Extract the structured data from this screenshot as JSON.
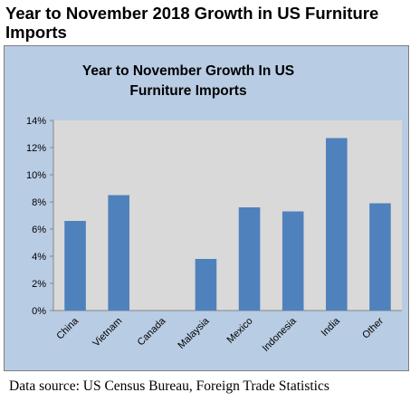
{
  "page_title": "Year to November 2018 Growth in US Furniture Imports",
  "source_note": "Data source: US Census Bureau, Foreign Trade Statistics",
  "colors": {
    "frame_bg": "#b8cce4",
    "plot_bg": "#d9d9d9",
    "bar": "#4f81bd"
  },
  "chart_data": {
    "type": "bar",
    "title_line1": "Year to November Growth In US",
    "title_line2": "Furniture Imports",
    "categories": [
      "China",
      "Vietnam",
      "Canada",
      "Malaysia",
      "Mexico",
      "Indonesia",
      "India",
      "Other"
    ],
    "values": [
      6.6,
      8.5,
      0,
      3.8,
      7.6,
      7.3,
      12.7,
      7.9
    ],
    "ylim": [
      0,
      14
    ],
    "yticks": [
      "0%",
      "2%",
      "4%",
      "6%",
      "8%",
      "10%",
      "12%",
      "14%"
    ],
    "xlabel": "",
    "ylabel": "",
    "grid": false,
    "legend": "none"
  }
}
